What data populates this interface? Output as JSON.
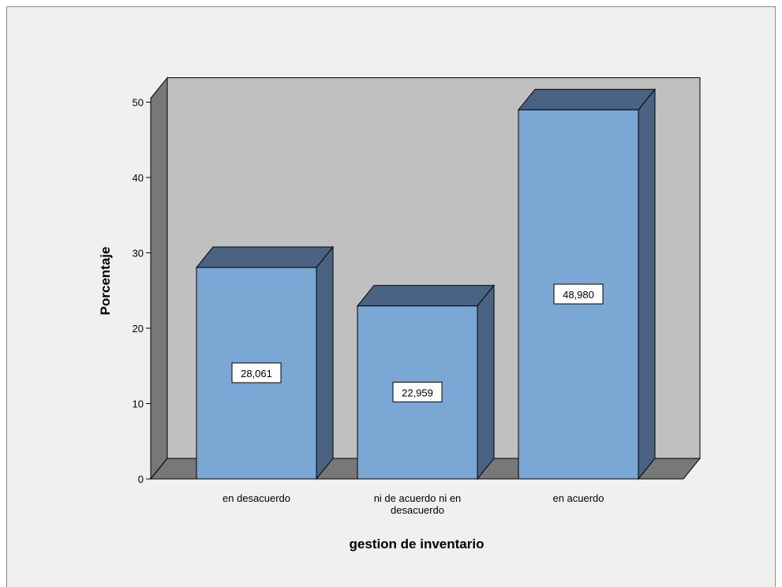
{
  "chart_data": {
    "type": "bar",
    "categories": [
      "en desacuerdo",
      "ni de acuerdo ni en desacuerdo",
      "en acuerdo"
    ],
    "category_lines": [
      [
        "en desacuerdo"
      ],
      [
        "ni de acuerdo ni en",
        "desacuerdo"
      ],
      [
        "en acuerdo"
      ]
    ],
    "values": [
      28.061,
      22.959,
      48.98
    ],
    "data_labels": [
      "28,061",
      "22,959",
      "48,980"
    ],
    "xlabel": "gestion de inventario",
    "ylabel": "Porcentaje",
    "ylim": [
      0,
      50
    ],
    "yticks": [
      0,
      10,
      20,
      30,
      40,
      50
    ],
    "style": "3d",
    "colors": {
      "bar_front": "#7ba7d5",
      "bar_top": "#4a6382",
      "bar_side": "#4a6382",
      "wall_back": "#c0c0c0",
      "wall_side": "#787878",
      "floor": "#787878",
      "background": "#f0f0f0"
    }
  }
}
